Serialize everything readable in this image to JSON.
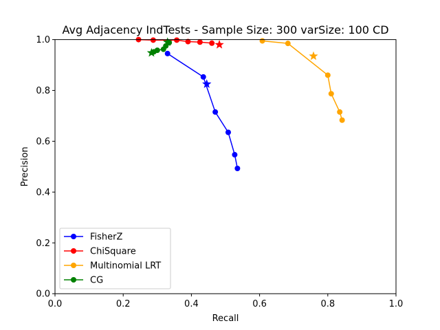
{
  "chart_data": {
    "type": "line",
    "title": "Avg Adjacency IndTests - Sample Size: 300 varSize: 100 CD",
    "xlabel": "Recall",
    "ylabel": "Precision",
    "xlim": [
      0.0,
      1.0
    ],
    "ylim": [
      0.0,
      1.0
    ],
    "xticks": [
      "0.0",
      "0.2",
      "0.4",
      "0.6",
      "0.8",
      "1.0"
    ],
    "yticks": [
      "0.0",
      "0.2",
      "0.4",
      "0.6",
      "0.8",
      "1.0"
    ],
    "grid": false,
    "legend_position": "lower-left",
    "series": [
      {
        "name": "FisherZ",
        "color": "#0000ff",
        "points": [
          [
            0.33,
            0.945
          ],
          [
            0.435,
            0.853
          ],
          [
            0.47,
            0.715
          ],
          [
            0.508,
            0.635
          ],
          [
            0.527,
            0.547
          ],
          [
            0.535,
            0.493
          ]
        ],
        "star": [
          0.445,
          0.825
        ]
      },
      {
        "name": "ChiSquare",
        "color": "#ff0000",
        "points": [
          [
            0.245,
            1.0
          ],
          [
            0.288,
            0.998
          ],
          [
            0.357,
            0.998
          ],
          [
            0.39,
            0.992
          ],
          [
            0.425,
            0.99
          ],
          [
            0.46,
            0.986
          ]
        ],
        "star": [
          0.482,
          0.98
        ]
      },
      {
        "name": "Multinomial LRT",
        "color": "#ffa500",
        "points": [
          [
            0.608,
            0.995
          ],
          [
            0.683,
            0.985
          ],
          [
            0.8,
            0.86
          ],
          [
            0.81,
            0.787
          ],
          [
            0.835,
            0.715
          ],
          [
            0.842,
            0.683
          ]
        ],
        "star": [
          0.758,
          0.935
        ]
      },
      {
        "name": "CG",
        "color": "#008000",
        "points": [
          [
            0.29,
            0.952
          ],
          [
            0.3,
            0.958
          ],
          [
            0.318,
            0.962
          ],
          [
            0.325,
            0.975
          ],
          [
            0.335,
            0.988
          ]
        ],
        "star": [
          0.283,
          0.948
        ],
        "star2": [
          0.33,
          0.99
        ]
      }
    ]
  }
}
